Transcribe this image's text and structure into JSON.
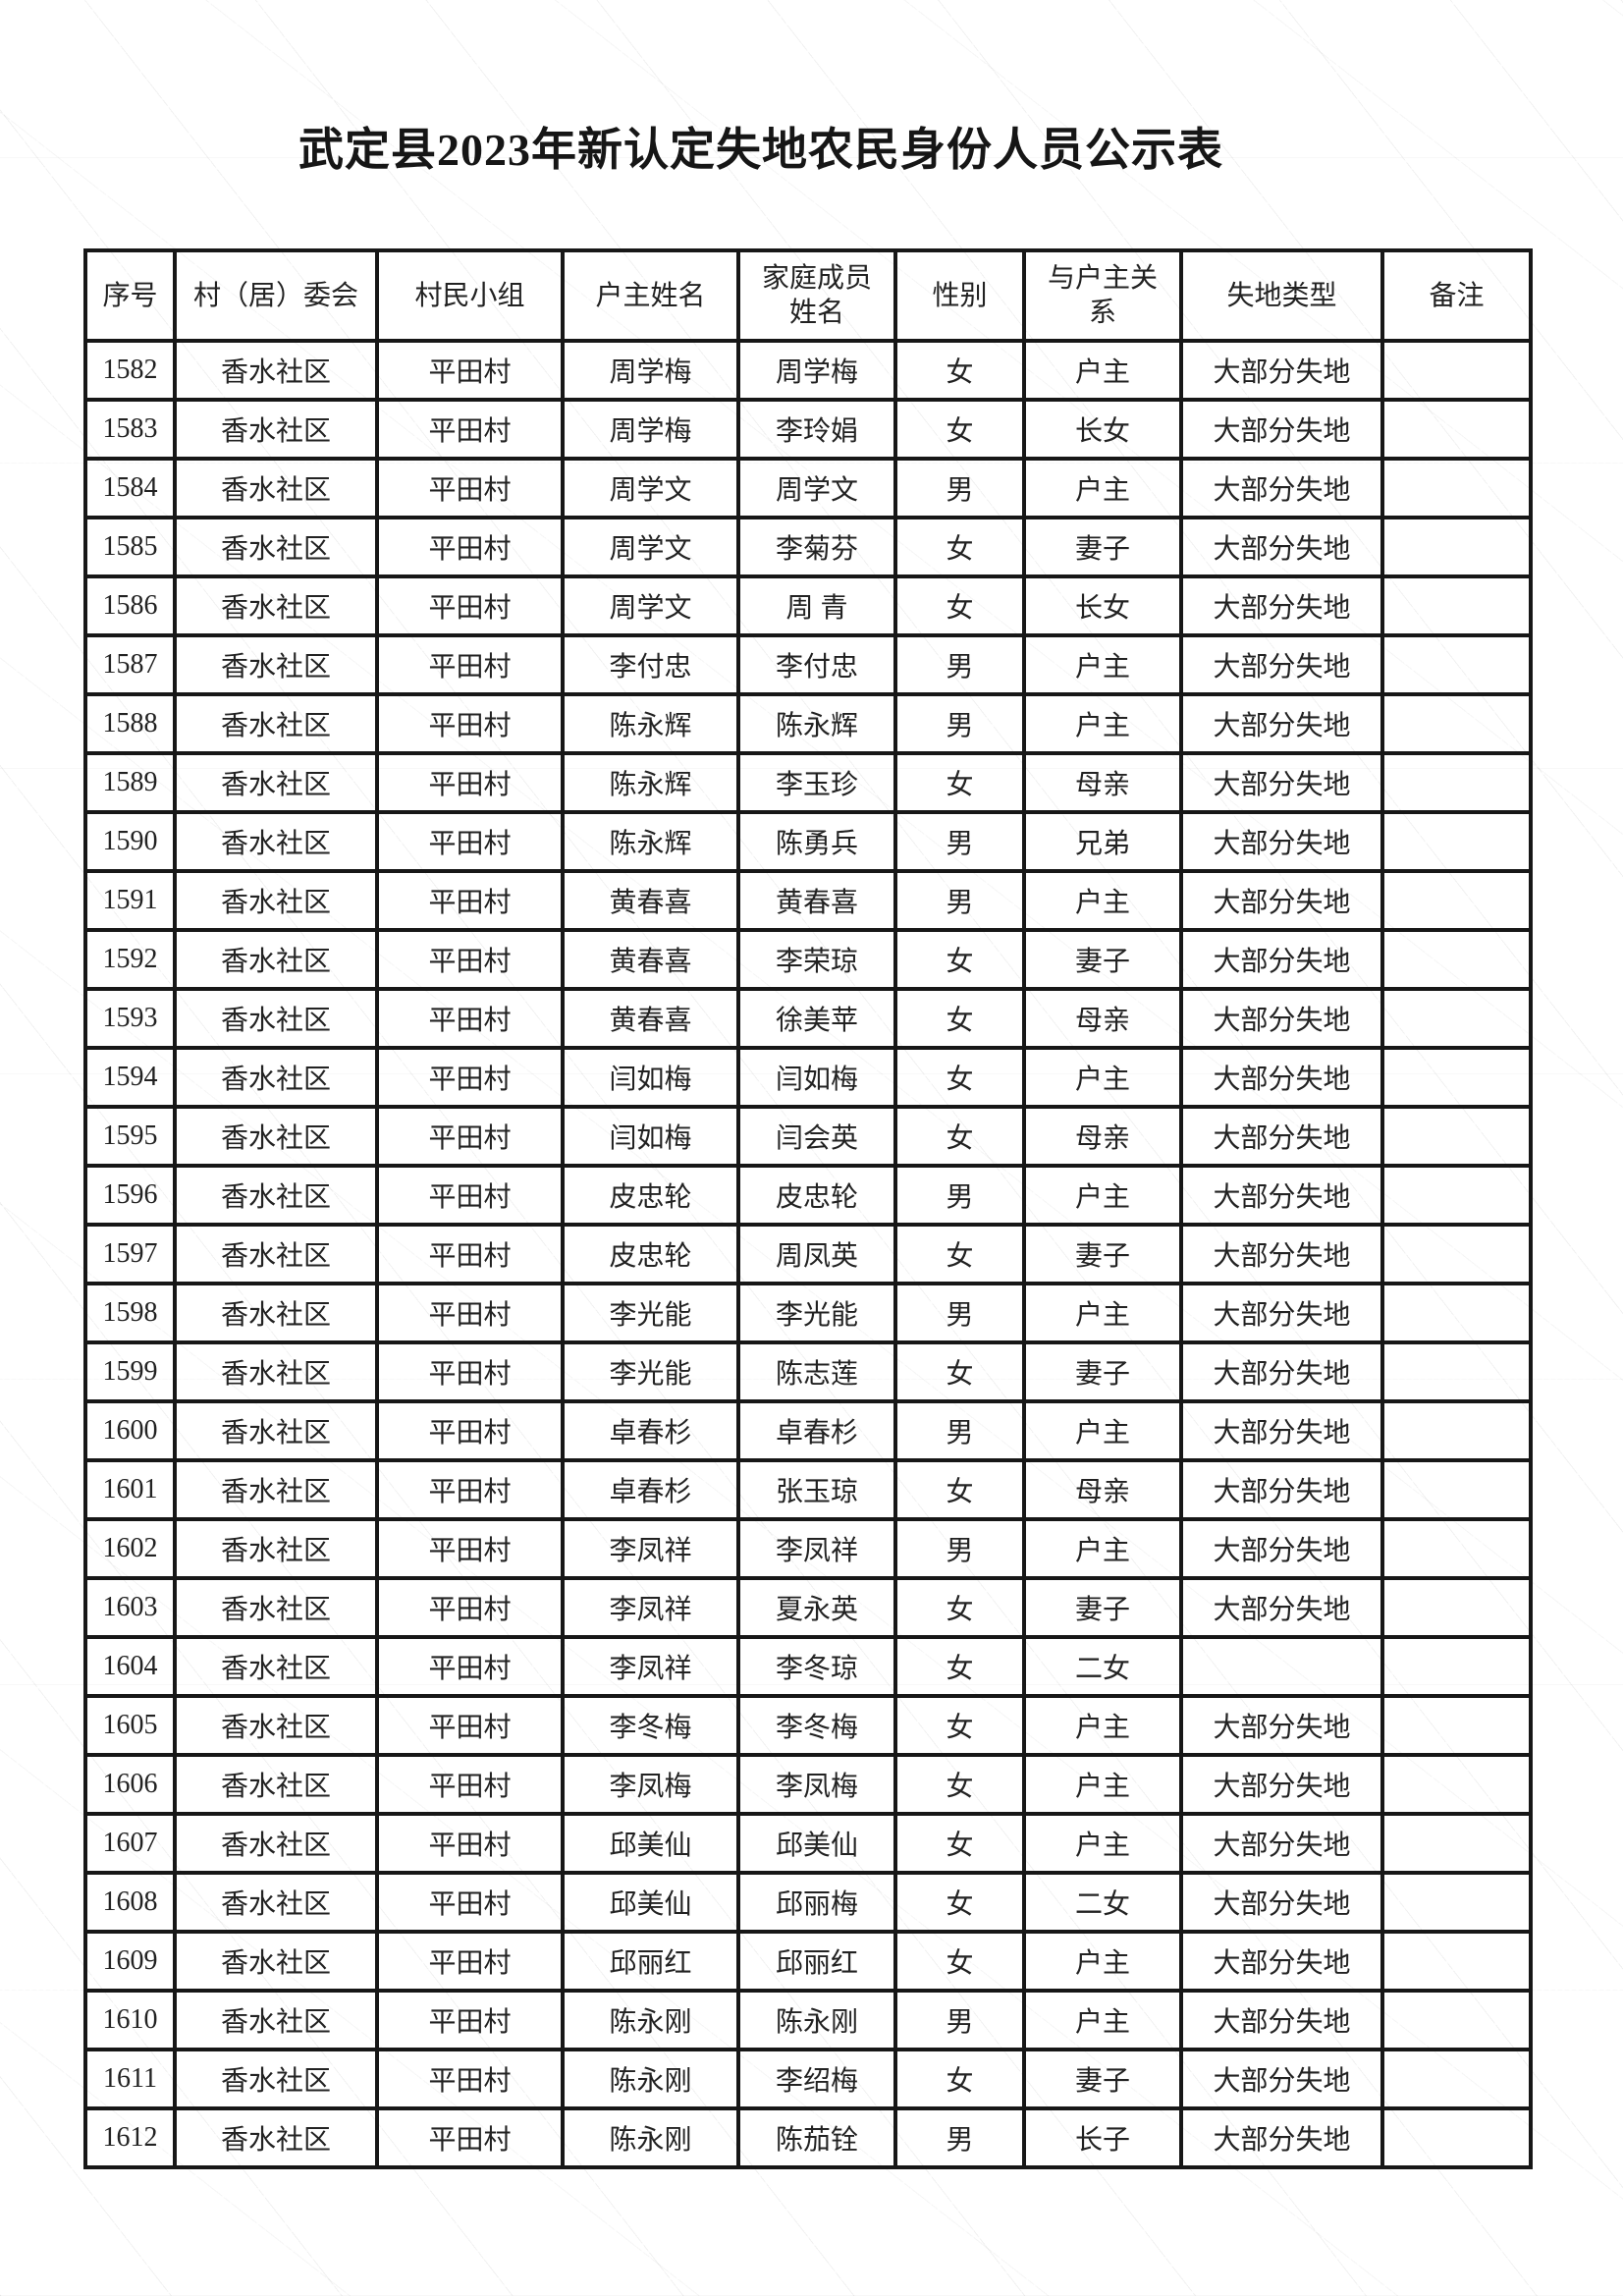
{
  "page": {
    "title": "武定县2023年新认定失地农民身份人员公示表"
  },
  "table": {
    "columns": [
      {
        "key": "serial",
        "label": "序号"
      },
      {
        "key": "committee",
        "label": "村（居）委会"
      },
      {
        "key": "group",
        "label": "村民小组"
      },
      {
        "key": "head-name",
        "label": "户主姓名"
      },
      {
        "key": "member-name",
        "label": "家庭成员姓名"
      },
      {
        "key": "gender",
        "label": "性别"
      },
      {
        "key": "relation",
        "label": "与户主关系"
      },
      {
        "key": "land-loss-type",
        "label": "失地类型"
      },
      {
        "key": "remark",
        "label": "备注"
      }
    ],
    "rows": [
      [
        "1582",
        "香水社区",
        "平田村",
        "周学梅",
        "周学梅",
        "女",
        "户主",
        "大部分失地",
        ""
      ],
      [
        "1583",
        "香水社区",
        "平田村",
        "周学梅",
        "李玲娟",
        "女",
        "长女",
        "大部分失地",
        ""
      ],
      [
        "1584",
        "香水社区",
        "平田村",
        "周学文",
        "周学文",
        "男",
        "户主",
        "大部分失地",
        ""
      ],
      [
        "1585",
        "香水社区",
        "平田村",
        "周学文",
        "李菊芬",
        "女",
        "妻子",
        "大部分失地",
        ""
      ],
      [
        "1586",
        "香水社区",
        "平田村",
        "周学文",
        "周 青",
        "女",
        "长女",
        "大部分失地",
        ""
      ],
      [
        "1587",
        "香水社区",
        "平田村",
        "李付忠",
        "李付忠",
        "男",
        "户主",
        "大部分失地",
        ""
      ],
      [
        "1588",
        "香水社区",
        "平田村",
        "陈永辉",
        "陈永辉",
        "男",
        "户主",
        "大部分失地",
        ""
      ],
      [
        "1589",
        "香水社区",
        "平田村",
        "陈永辉",
        "李玉珍",
        "女",
        "母亲",
        "大部分失地",
        ""
      ],
      [
        "1590",
        "香水社区",
        "平田村",
        "陈永辉",
        "陈勇兵",
        "男",
        "兄弟",
        "大部分失地",
        ""
      ],
      [
        "1591",
        "香水社区",
        "平田村",
        "黄春喜",
        "黄春喜",
        "男",
        "户主",
        "大部分失地",
        ""
      ],
      [
        "1592",
        "香水社区",
        "平田村",
        "黄春喜",
        "李荣琼",
        "女",
        "妻子",
        "大部分失地",
        ""
      ],
      [
        "1593",
        "香水社区",
        "平田村",
        "黄春喜",
        "徐美苹",
        "女",
        "母亲",
        "大部分失地",
        ""
      ],
      [
        "1594",
        "香水社区",
        "平田村",
        "闫如梅",
        "闫如梅",
        "女",
        "户主",
        "大部分失地",
        ""
      ],
      [
        "1595",
        "香水社区",
        "平田村",
        "闫如梅",
        "闫会英",
        "女",
        "母亲",
        "大部分失地",
        ""
      ],
      [
        "1596",
        "香水社区",
        "平田村",
        "皮忠轮",
        "皮忠轮",
        "男",
        "户主",
        "大部分失地",
        ""
      ],
      [
        "1597",
        "香水社区",
        "平田村",
        "皮忠轮",
        "周凤英",
        "女",
        "妻子",
        "大部分失地",
        ""
      ],
      [
        "1598",
        "香水社区",
        "平田村",
        "李光能",
        "李光能",
        "男",
        "户主",
        "大部分失地",
        ""
      ],
      [
        "1599",
        "香水社区",
        "平田村",
        "李光能",
        "陈志莲",
        "女",
        "妻子",
        "大部分失地",
        ""
      ],
      [
        "1600",
        "香水社区",
        "平田村",
        "卓春杉",
        "卓春杉",
        "男",
        "户主",
        "大部分失地",
        ""
      ],
      [
        "1601",
        "香水社区",
        "平田村",
        "卓春杉",
        "张玉琼",
        "女",
        "母亲",
        "大部分失地",
        ""
      ],
      [
        "1602",
        "香水社区",
        "平田村",
        "李凤祥",
        "李凤祥",
        "男",
        "户主",
        "大部分失地",
        ""
      ],
      [
        "1603",
        "香水社区",
        "平田村",
        "李凤祥",
        "夏永英",
        "女",
        "妻子",
        "大部分失地",
        ""
      ],
      [
        "1604",
        "香水社区",
        "平田村",
        "李凤祥",
        "李冬琼",
        "女",
        "二女",
        "",
        ""
      ],
      [
        "1605",
        "香水社区",
        "平田村",
        "李冬梅",
        "李冬梅",
        "女",
        "户主",
        "大部分失地",
        ""
      ],
      [
        "1606",
        "香水社区",
        "平田村",
        "李凤梅",
        "李凤梅",
        "女",
        "户主",
        "大部分失地",
        ""
      ],
      [
        "1607",
        "香水社区",
        "平田村",
        "邱美仙",
        "邱美仙",
        "女",
        "户主",
        "大部分失地",
        ""
      ],
      [
        "1608",
        "香水社区",
        "平田村",
        "邱美仙",
        "邱丽梅",
        "女",
        "二女",
        "大部分失地",
        ""
      ],
      [
        "1609",
        "香水社区",
        "平田村",
        "邱丽红",
        "邱丽红",
        "女",
        "户主",
        "大部分失地",
        ""
      ],
      [
        "1610",
        "香水社区",
        "平田村",
        "陈永刚",
        "陈永刚",
        "男",
        "户主",
        "大部分失地",
        ""
      ],
      [
        "1611",
        "香水社区",
        "平田村",
        "陈永刚",
        "李绍梅",
        "女",
        "妻子",
        "大部分失地",
        ""
      ],
      [
        "1612",
        "香水社区",
        "平田村",
        "陈永刚",
        "陈茄铨",
        "男",
        "长子",
        "大部分失地",
        ""
      ]
    ]
  }
}
